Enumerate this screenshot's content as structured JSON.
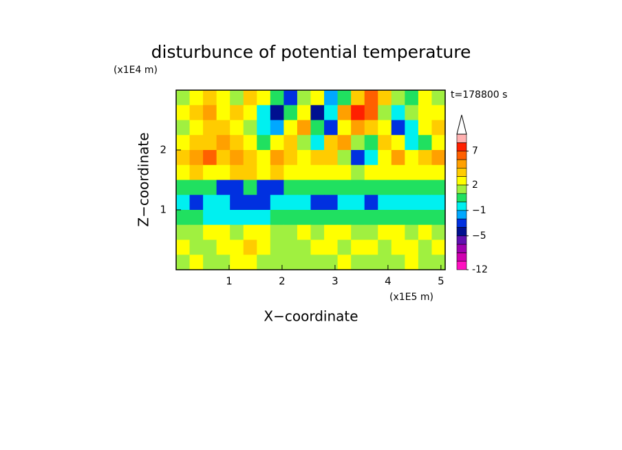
{
  "chart_data": {
    "type": "contour",
    "title": "disturbunce of potential temperature",
    "x_label": "X−coordinate",
    "y_label": "Z−coordinate",
    "x_unit": "(x1E5 m)",
    "y_unit": "(x1E4 m)",
    "annotation": "t=178800 s",
    "xlim": [
      0,
      5.08
    ],
    "ylim": [
      0,
      3
    ],
    "xticks": [
      1,
      2,
      3,
      4,
      5
    ],
    "yticks": [
      1,
      2
    ],
    "levels": [
      -12,
      -10,
      -8,
      -6,
      -5,
      -3,
      -2,
      -1,
      0,
      1,
      2,
      3,
      4,
      5,
      7,
      9,
      11
    ],
    "colors": [
      "#ff10c0",
      "#d000b0",
      "#a000b0",
      "#6010b0",
      "#001090",
      "#0030e0",
      "#00a8ff",
      "#00f0f0",
      "#20e060",
      "#a0f040",
      "#ffff00",
      "#ffcc00",
      "#ffa000",
      "#ff6000",
      "#ff2000",
      "#ffb0b0"
    ],
    "colorbar_ticks": [
      -12,
      {
        "value": -5,
        "label": "−5"
      },
      {
        "value": -1,
        "label": "−1"
      },
      2,
      7
    ],
    "z": [
      [
        1,
        2,
        3,
        2,
        1,
        3,
        2,
        0,
        -3,
        1,
        2,
        -2,
        0,
        3,
        5,
        3,
        1,
        0,
        2,
        1
      ],
      [
        2,
        3,
        4,
        2,
        3,
        2,
        -1,
        -4,
        0,
        2,
        -4,
        -1,
        4,
        7,
        5,
        1,
        -1,
        1,
        2,
        2
      ],
      [
        1,
        2,
        3,
        3,
        2,
        1,
        -1,
        -2,
        2,
        4,
        0,
        -3,
        2,
        4,
        3,
        2,
        -3,
        -1,
        2,
        3
      ],
      [
        2,
        3,
        3,
        4,
        3,
        2,
        0,
        2,
        3,
        1,
        -1,
        3,
        4,
        1,
        0,
        3,
        2,
        -1,
        0,
        2
      ],
      [
        3,
        4,
        5,
        3,
        4,
        3,
        2,
        4,
        3,
        2,
        3,
        3,
        1,
        -3,
        -1,
        2,
        4,
        2,
        3,
        4
      ],
      [
        2,
        3,
        2,
        2,
        3,
        3,
        2,
        3,
        2,
        2,
        2,
        2,
        2,
        1,
        2,
        2,
        2,
        2,
        2,
        2
      ],
      [
        0,
        0,
        0,
        -3,
        -3,
        0,
        -3,
        -3,
        0,
        0,
        0,
        0,
        0,
        0,
        0,
        0,
        0,
        0,
        0,
        0
      ],
      [
        -1,
        -3,
        -1,
        -1,
        -3,
        -3,
        -3,
        -1,
        -1,
        -1,
        -3,
        -3,
        -1,
        -1,
        -3,
        -1,
        -1,
        -1,
        -1,
        -1
      ],
      [
        0,
        0,
        -1,
        -1,
        -1,
        -1,
        -1,
        0,
        0,
        0,
        0,
        0,
        0,
        0,
        0,
        0,
        0,
        0,
        0,
        0
      ],
      [
        1,
        1,
        2,
        2,
        1,
        2,
        2,
        1,
        1,
        2,
        1,
        2,
        2,
        1,
        1,
        2,
        2,
        1,
        2,
        1
      ],
      [
        2,
        1,
        1,
        2,
        2,
        3,
        2,
        1,
        1,
        1,
        2,
        2,
        1,
        2,
        2,
        1,
        2,
        2,
        1,
        2
      ],
      [
        1,
        2,
        1,
        1,
        2,
        2,
        1,
        1,
        1,
        1,
        1,
        1,
        2,
        1,
        1,
        1,
        1,
        2,
        1,
        1
      ]
    ]
  }
}
